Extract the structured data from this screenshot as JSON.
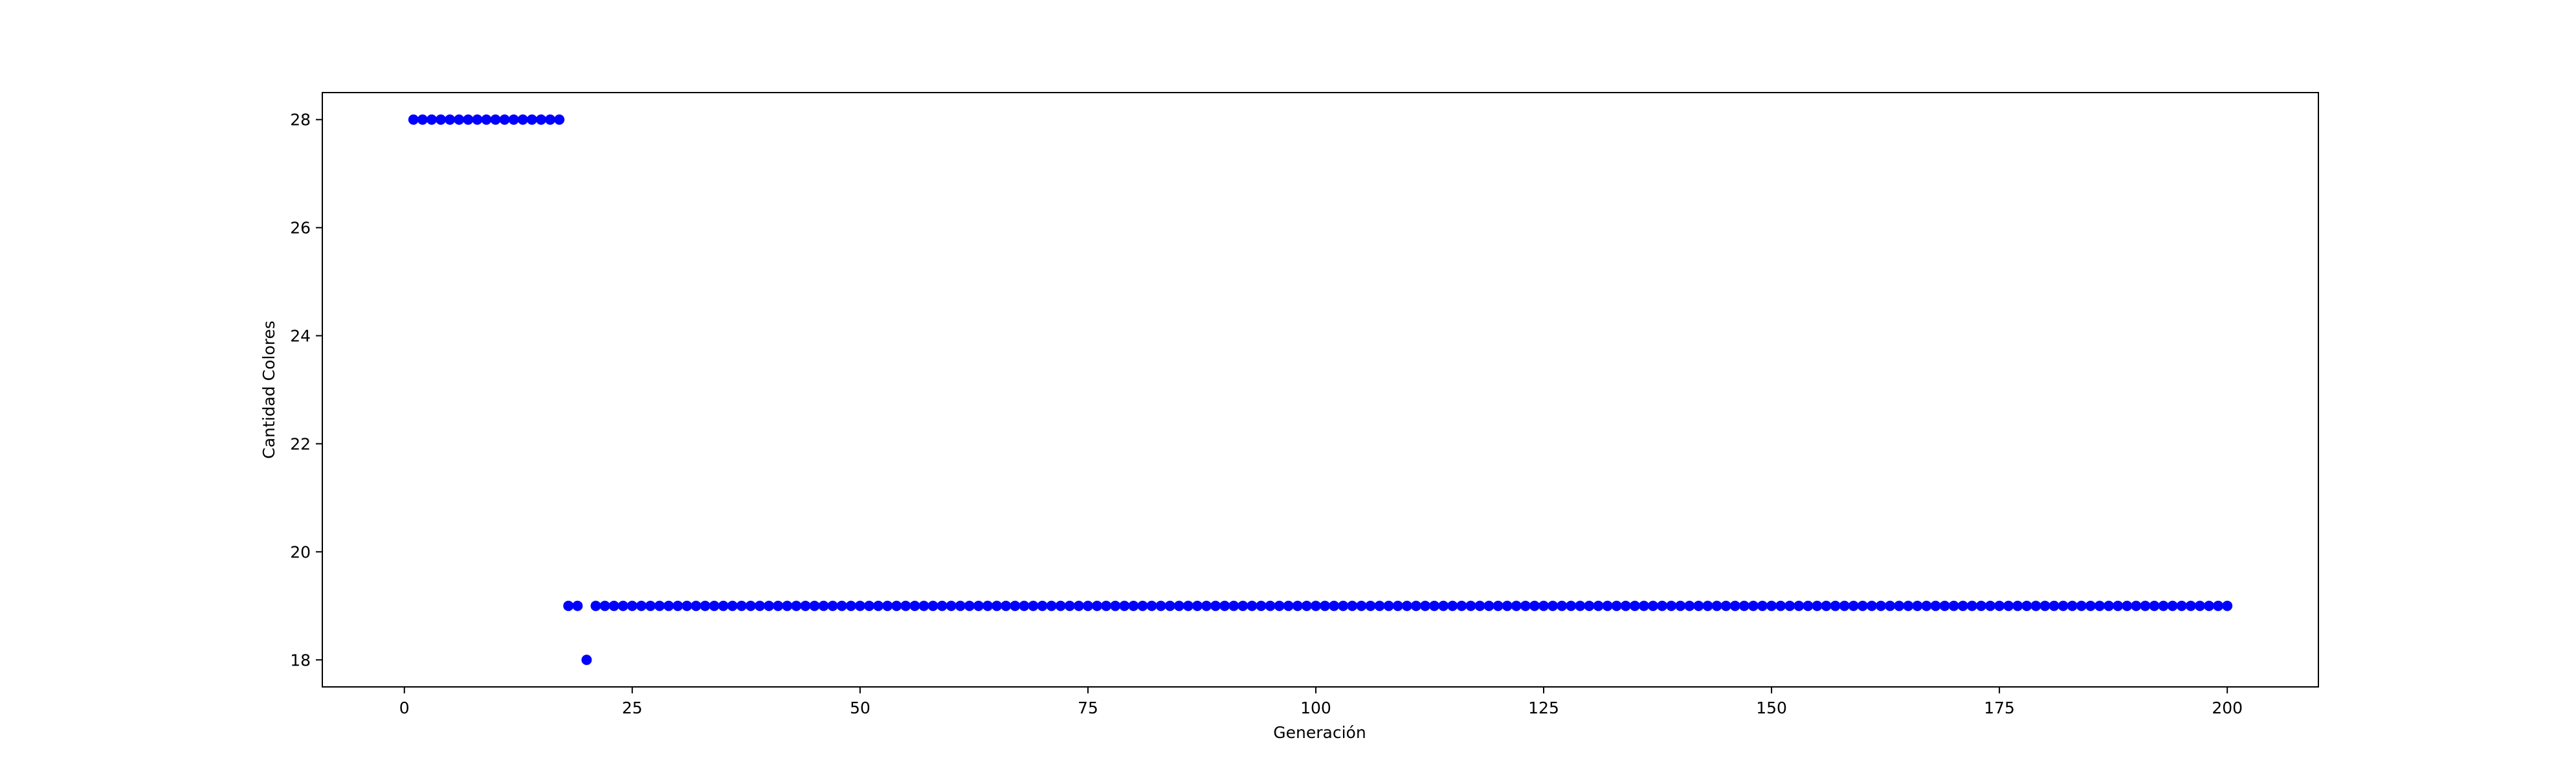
{
  "chart_data": {
    "type": "scatter",
    "title": "",
    "xlabel": "Generación",
    "ylabel": "Cantidad Colores",
    "xlim": [
      -9,
      210
    ],
    "ylim": [
      17.5,
      28.5
    ],
    "x_ticks": [
      0,
      25,
      50,
      75,
      100,
      125,
      150,
      175,
      200
    ],
    "y_ticks": [
      18,
      20,
      22,
      24,
      26,
      28
    ],
    "grid": false,
    "legend": "none",
    "marker_color": "#0000ff",
    "series": [
      {
        "segments": [
          {
            "x_start": 1,
            "x_end": 17,
            "y": 28
          },
          {
            "x_start": 18,
            "x_end": 19,
            "y": 19
          },
          {
            "x_start": 20,
            "x_end": 20,
            "y": 18
          },
          {
            "x_start": 21,
            "x_end": 200,
            "y": 19
          }
        ]
      }
    ]
  }
}
